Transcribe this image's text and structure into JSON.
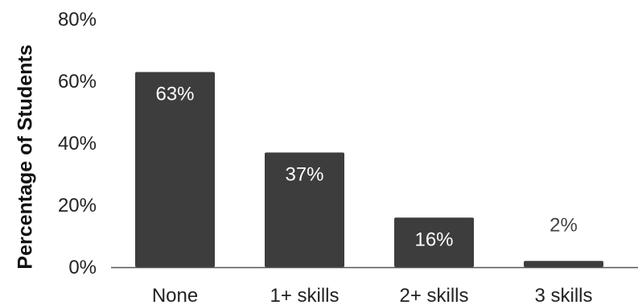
{
  "chart_data": {
    "type": "bar",
    "title": "",
    "xlabel": "",
    "ylabel": "Percentage of Students",
    "categories": [
      "None",
      "1+ skills",
      "2+ skills",
      "3 skills"
    ],
    "values": [
      63,
      37,
      16,
      2
    ],
    "value_labels": [
      "63%",
      "37%",
      "16%",
      "2%"
    ],
    "ylim": [
      0,
      80
    ],
    "yticks": [
      0,
      20,
      40,
      60,
      80
    ],
    "ytick_labels": [
      "0%",
      "20%",
      "40%",
      "60%",
      "80%"
    ],
    "grid": false,
    "legend": "none",
    "colors": {
      "bar": "#3d3d3d",
      "label_inside": "#ffffff",
      "label_outside": "#444444",
      "axis_line": "#555555"
    }
  }
}
